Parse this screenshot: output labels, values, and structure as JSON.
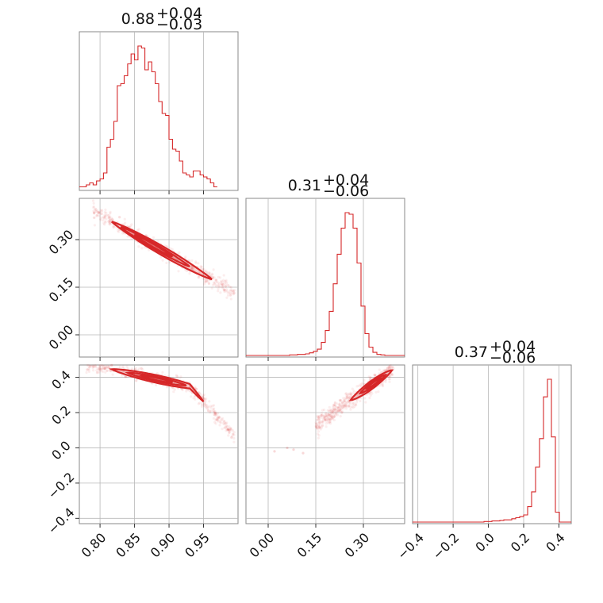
{
  "chart_data": {
    "type": "corner",
    "colors": {
      "series": "#d62728",
      "grid": "#b8b8b8",
      "frame": "#8a8a8a"
    },
    "parameters": [
      {
        "range": [
          0.77,
          1.0
        ],
        "ticks": [
          0.8,
          0.85,
          0.9,
          0.95
        ],
        "tick_labels": [
          "0.80",
          "0.85",
          "0.90",
          "0.95"
        ],
        "summary": {
          "median": "0.88",
          "plus": "+0.04",
          "minus": "−0.03"
        },
        "hist": {
          "edges_start": 0.77,
          "bin_width": 0.005,
          "counts": [
            1,
            1,
            2,
            3,
            2,
            4,
            5,
            8,
            21,
            25,
            34,
            52,
            53,
            57,
            63,
            68,
            65,
            72,
            71,
            60,
            64,
            59,
            53,
            44,
            38,
            37,
            25,
            20,
            19,
            14,
            8,
            7,
            6,
            9,
            9,
            7,
            6,
            5,
            3,
            1
          ]
        }
      },
      {
        "range": [
          -0.07,
          0.43
        ],
        "ticks": [
          0.0,
          0.15,
          0.3
        ],
        "tick_labels": [
          "0.00",
          "0.15",
          "0.30"
        ],
        "summary": {
          "median": "0.31",
          "plus": "+0.04",
          "minus": "−0.06"
        },
        "hist": {
          "edges_start": -0.07,
          "bin_width": 0.0125,
          "counts": [
            0,
            0,
            0,
            0,
            0,
            0,
            0,
            0,
            0,
            0,
            0,
            1,
            1,
            2,
            2,
            3,
            5,
            8,
            12,
            25,
            48,
            85,
            138,
            195,
            245,
            275,
            272,
            245,
            178,
            95,
            42,
            16,
            6,
            2,
            1,
            0,
            0,
            0,
            0,
            0
          ]
        }
      },
      {
        "range": [
          -0.43,
          0.47
        ],
        "ticks": [
          -0.4,
          -0.2,
          0.0,
          0.2,
          0.4
        ],
        "tick_labels": [
          "−0.4",
          "−0.2",
          "0.0",
          "0.2",
          "0.4"
        ],
        "summary": {
          "median": "0.37",
          "plus": "+0.04",
          "minus": "−0.06"
        },
        "hist": {
          "edges_start": -0.43,
          "bin_width": 0.0225,
          "counts": [
            0,
            0,
            0,
            0,
            0,
            0,
            0,
            0,
            0,
            0,
            0,
            0,
            0,
            0,
            0,
            0,
            0,
            0,
            1,
            1,
            2,
            2,
            3,
            4,
            4,
            6,
            8,
            10,
            13,
            28,
            55,
            100,
            152,
            228,
            260,
            155,
            18,
            0,
            0,
            0
          ]
        }
      }
    ],
    "joint_ticks": {
      "p2": {
        "ticks": [
          0.0,
          0.15,
          0.3
        ],
        "labels": [
          "0.00",
          "0.15",
          "0.30"
        ]
      },
      "p3": {
        "ticks": [
          -0.4,
          -0.2,
          0.0,
          0.2,
          0.4
        ],
        "labels": [
          "−0.4",
          "−0.2",
          "0.0",
          "0.2",
          "0.4"
        ]
      }
    }
  }
}
